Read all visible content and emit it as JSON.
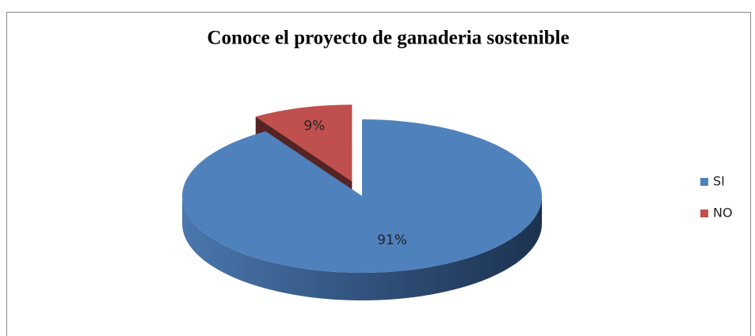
{
  "chart_data": {
    "type": "pie",
    "title": "Conoce el proyecto de ganaderia sostenible",
    "categories": [
      "SI",
      "NO"
    ],
    "values": [
      91,
      9
    ],
    "value_labels": [
      "91%",
      "9%"
    ],
    "colors": [
      "#4f81bd",
      "#c0504d"
    ],
    "exploded": [
      false,
      true
    ],
    "legend": "right"
  }
}
